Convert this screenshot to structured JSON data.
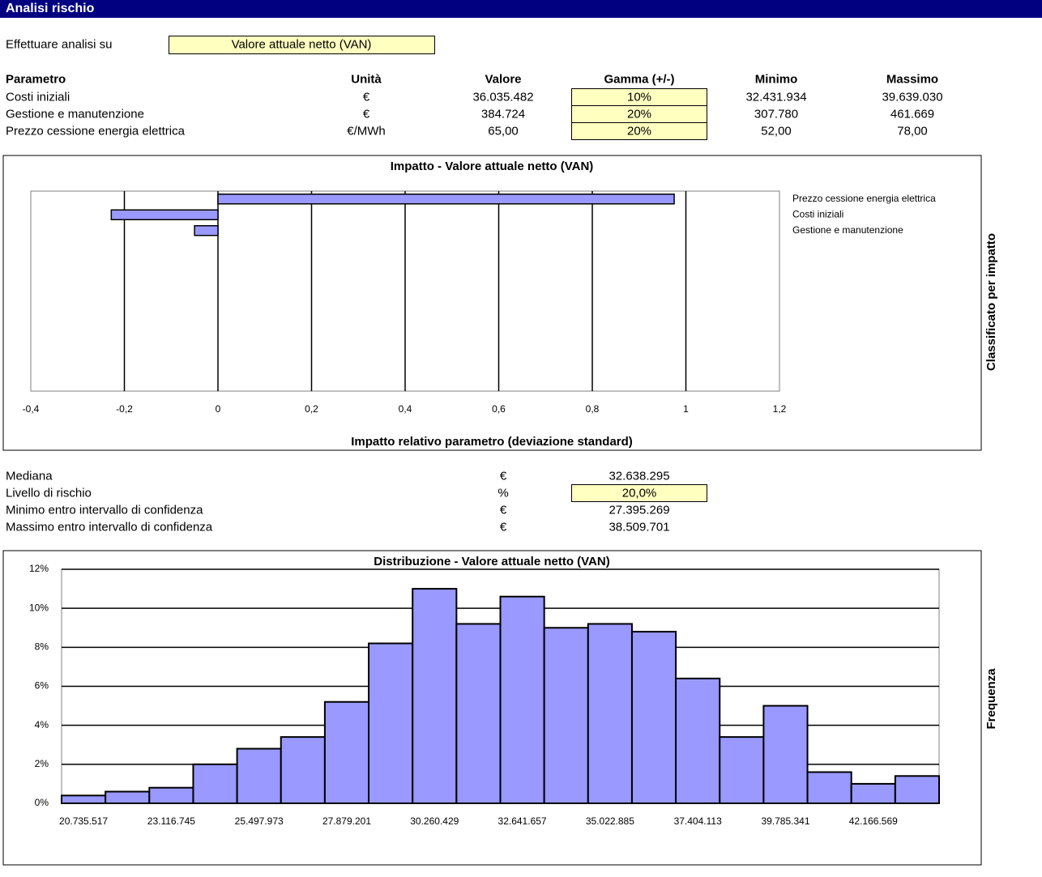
{
  "header": {
    "title": "Analisi rischio"
  },
  "selector": {
    "label": "Effettuare analisi su",
    "value": "Valore attuale netto (VAN)"
  },
  "parameters": {
    "columns": [
      "Parametro",
      "Unità",
      "Valore",
      "Gamma (+/-)",
      "Minimo",
      "Massimo"
    ],
    "rows": [
      [
        "Costi iniziali",
        "€",
        "36.035.482",
        "10%",
        "32.431.934",
        "39.639.030"
      ],
      [
        "Gestione e manutenzione",
        "€",
        "384.724",
        "20%",
        "307.780",
        "461.669"
      ],
      [
        "Prezzo cessione energia elettrica",
        "€/MWh",
        "65,00",
        "20%",
        "52,00",
        "78,00"
      ]
    ]
  },
  "results": {
    "rows": [
      [
        "Mediana",
        "€",
        "32.638.295"
      ],
      [
        "Livello di rischio",
        "%",
        "20,0%"
      ],
      [
        "Minimo entro intervallo di confidenza",
        "€",
        "27.395.269"
      ],
      [
        "Massimo entro intervallo di confidenza",
        "€",
        "38.509.701"
      ]
    ]
  },
  "chart_data": [
    {
      "type": "bar",
      "orientation": "horizontal",
      "title": "Impatto - Valore attuale netto (VAN)",
      "x_label": "Impatto relativo parametro (deviazione standard)",
      "y_label": "Classificato per impatto",
      "categories": [
        "Prezzo cessione energia elettrica",
        "Costi iniziali",
        "Gestione e manutenzione"
      ],
      "values": [
        0.975,
        -0.228,
        -0.05
      ],
      "color": "#9999ff",
      "xlim": [
        -0.4,
        1.2
      ],
      "xticks": [
        {
          "value": -0.4,
          "label": "-0,4"
        },
        {
          "value": -0.2,
          "label": "-0,2"
        },
        0,
        {
          "value": 0.2,
          "label": "0,2"
        },
        {
          "value": 0.4,
          "label": "0,4"
        },
        {
          "value": 0.6,
          "label": "0,6"
        },
        {
          "value": 0.8,
          "label": "0,8"
        },
        1,
        {
          "value": 1.2,
          "label": "1,2"
        }
      ],
      "grid": true
    },
    {
      "type": "bar",
      "orientation": "vertical",
      "title": "Distribuzione - Valore attuale netto (VAN)",
      "y_label": "Frequenza",
      "categories": [
        "20.735.517",
        null,
        "23.116.745",
        null,
        "25.497.973",
        null,
        "27.879.201",
        null,
        "30.260.429",
        null,
        "32.641.657",
        null,
        "35.022.885",
        null,
        "37.404.113",
        null,
        "39.785.341",
        null,
        "42.166.569",
        null
      ],
      "values": [
        0.4,
        0.6,
        0.8,
        2.0,
        2.8,
        3.4,
        5.2,
        8.2,
        11.0,
        9.2,
        10.6,
        9.0,
        9.2,
        8.8,
        6.4,
        3.4,
        5.0,
        1.6,
        1.0,
        1.4
      ],
      "color": "#9999ff",
      "ylim": [
        0,
        12
      ],
      "yticks": [
        {
          "value": 0,
          "label": "0%"
        },
        {
          "value": 2,
          "label": "2%"
        },
        {
          "value": 4,
          "label": "4%"
        },
        {
          "value": 6,
          "label": "6%"
        },
        {
          "value": 8,
          "label": "8%"
        },
        {
          "value": 10,
          "label": "10%"
        },
        {
          "value": 12,
          "label": "12%"
        }
      ],
      "grid": true
    }
  ]
}
